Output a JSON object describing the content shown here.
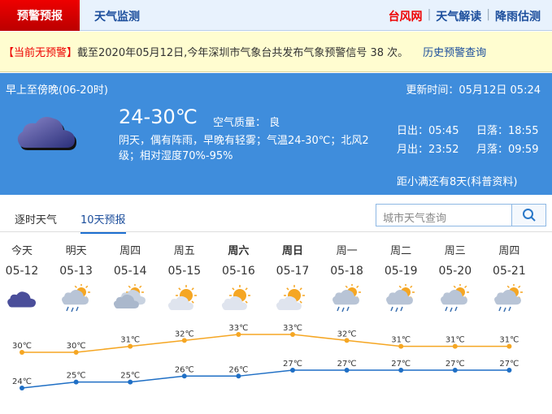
{
  "nav": {
    "active": "预警预报",
    "tab2": "天气监测",
    "links": [
      "台风网",
      "天气解读",
      "降雨估测"
    ],
    "link_colors": [
      "#e00000",
      "#1c4e9c",
      "#1c4e9c"
    ]
  },
  "warning": {
    "status": "【当前无预警】",
    "text": "截至2020年05月12日,今年深圳市气象台共发布气象预警信号 38 次。",
    "history_link": "历史预警查询"
  },
  "today": {
    "period": "早上至傍晚(06-20时)",
    "update": "更新时间：05月12日 05:24",
    "temp": "24-30℃",
    "aqi": "空气质量： 良",
    "desc": "阴天，偶有阵雨，早晚有轻雾；气温24-30℃；北风2级；相对湿度70%-95%",
    "sunrise": "日出：05:45",
    "sunset": "日落：18:55",
    "moonrise": "月出：23:52",
    "moonset": "月落：09:59",
    "solar_term": "距小满还有8天(科普资料)",
    "icon": "overcast-cloud-icon"
  },
  "tabs": [
    "逐时天气",
    "10天预报"
  ],
  "search": {
    "placeholder": "城市天气查询"
  },
  "forecast": [
    {
      "day": "今天",
      "date": "05-12",
      "icon": "cloudy",
      "high": "30℃",
      "low": "24℃",
      "bold": false
    },
    {
      "day": "明天",
      "date": "05-13",
      "icon": "sun-rain",
      "high": "30℃",
      "low": "25℃",
      "bold": false
    },
    {
      "day": "周四",
      "date": "05-14",
      "icon": "sun-cloud-rain",
      "high": "31℃",
      "low": "25℃",
      "bold": false
    },
    {
      "day": "周五",
      "date": "05-15",
      "icon": "partly-cloudy",
      "high": "32℃",
      "low": "26℃",
      "bold": false
    },
    {
      "day": "周六",
      "date": "05-16",
      "icon": "partly-cloudy",
      "high": "33℃",
      "low": "26℃",
      "bold": true
    },
    {
      "day": "周日",
      "date": "05-17",
      "icon": "partly-cloudy",
      "high": "33℃",
      "low": "27℃",
      "bold": true
    },
    {
      "day": "周一",
      "date": "05-18",
      "icon": "sun-rain",
      "high": "32℃",
      "low": "27℃",
      "bold": false
    },
    {
      "day": "周二",
      "date": "05-19",
      "icon": "sun-rain",
      "high": "31℃",
      "low": "27℃",
      "bold": false
    },
    {
      "day": "周三",
      "date": "05-20",
      "icon": "sun-rain",
      "high": "31℃",
      "low": "27℃",
      "bold": false
    },
    {
      "day": "周四",
      "date": "05-21",
      "icon": "sun-rain",
      "high": "31℃",
      "low": "27℃",
      "bold": false
    }
  ],
  "chart_data": {
    "type": "line",
    "categories": [
      "05-12",
      "05-13",
      "05-14",
      "05-15",
      "05-16",
      "05-17",
      "05-18",
      "05-19",
      "05-20",
      "05-21"
    ],
    "series": [
      {
        "values": [
          30,
          30,
          31,
          32,
          33,
          33,
          32,
          31,
          31,
          31
        ],
        "color": "#f5a623"
      },
      {
        "values": [
          24,
          25,
          25,
          26,
          26,
          27,
          27,
          27,
          27,
          27
        ],
        "color": "#1f6fc5"
      }
    ],
    "unit": "℃"
  }
}
